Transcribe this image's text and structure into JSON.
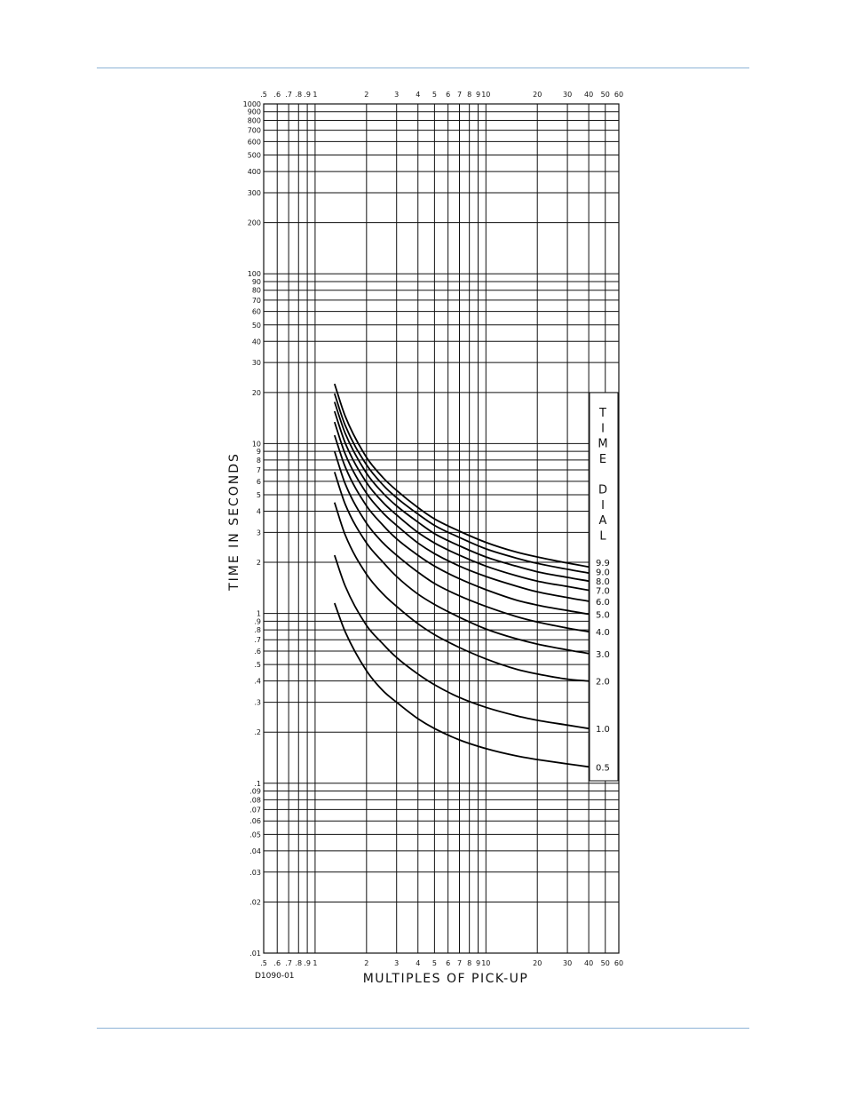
{
  "page": {
    "figure_code": "D1090-01"
  },
  "chart_data": {
    "type": "line",
    "title": "",
    "xlabel": "MULTIPLES OF PICK-UP",
    "ylabel": "TIME IN SECONDS",
    "xscale": "log",
    "yscale": "log",
    "xlim": [
      0.5,
      60
    ],
    "ylim": [
      0.01,
      1000
    ],
    "grid": true,
    "x_ticks": [
      0.5,
      0.6,
      0.7,
      0.8,
      0.9,
      1,
      2,
      3,
      4,
      5,
      6,
      7,
      8,
      9,
      10,
      20,
      30,
      40,
      50,
      60
    ],
    "x_tick_labels": [
      ".5",
      ".6",
      ".7",
      ".8",
      ".9",
      "1",
      "2",
      "3",
      "4",
      "5",
      "6",
      "7",
      "8",
      "9",
      "10",
      "20",
      "30",
      "40",
      "50",
      "60"
    ],
    "y_ticks": [
      0.01,
      0.02,
      0.03,
      0.04,
      0.05,
      0.06,
      0.07,
      0.08,
      0.09,
      0.1,
      0.2,
      0.3,
      0.4,
      0.5,
      0.6,
      0.7,
      0.8,
      0.9,
      1,
      2,
      3,
      4,
      5,
      6,
      7,
      8,
      9,
      10,
      20,
      30,
      40,
      50,
      60,
      70,
      80,
      90,
      100,
      200,
      300,
      400,
      500,
      600,
      700,
      800,
      900,
      1000
    ],
    "y_tick_labels": [
      ".01",
      ".02",
      ".03",
      ".04",
      ".05",
      ".06",
      ".07",
      ".08",
      ".09",
      ".1",
      ".2",
      ".3",
      ".4",
      ".5",
      ".6",
      ".7",
      ".8",
      ".9",
      "1",
      "2",
      "3",
      "4",
      "5",
      "6",
      "7",
      "8",
      "9",
      "10",
      "20",
      "30",
      "40",
      "50",
      "60",
      "70",
      "80",
      "90",
      "100",
      "200",
      "300",
      "400",
      "500",
      "600",
      "700",
      "800",
      "900",
      "1000"
    ],
    "legend_title": [
      "T",
      "I",
      "M",
      "E",
      "",
      "D",
      "I",
      "A",
      "L"
    ],
    "legend_placement": "right",
    "series": [
      {
        "name": "0.5",
        "x": [
          1.3,
          1.5,
          2,
          2.5,
          3,
          4,
          5,
          7,
          10,
          15,
          20,
          30,
          40
        ],
        "y": [
          1.15,
          0.78,
          0.46,
          0.35,
          0.3,
          0.24,
          0.21,
          0.18,
          0.16,
          0.145,
          0.138,
          0.13,
          0.125
        ]
      },
      {
        "name": "1.0",
        "x": [
          1.3,
          1.5,
          2,
          2.5,
          3,
          4,
          5,
          7,
          10,
          15,
          20,
          30,
          40
        ],
        "y": [
          2.2,
          1.45,
          0.85,
          0.66,
          0.55,
          0.44,
          0.38,
          0.32,
          0.28,
          0.25,
          0.235,
          0.22,
          0.21
        ]
      },
      {
        "name": "2.0",
        "x": [
          1.3,
          1.5,
          2,
          2.5,
          3,
          4,
          5,
          7,
          10,
          15,
          20,
          30,
          40
        ],
        "y": [
          4.5,
          2.9,
          1.7,
          1.3,
          1.1,
          0.87,
          0.75,
          0.63,
          0.54,
          0.47,
          0.44,
          0.41,
          0.4
        ]
      },
      {
        "name": "3.0",
        "x": [
          1.3,
          1.5,
          2,
          2.5,
          3,
          4,
          5,
          7,
          10,
          15,
          20,
          30,
          40
        ],
        "y": [
          6.8,
          4.4,
          2.6,
          2.0,
          1.65,
          1.3,
          1.13,
          0.95,
          0.81,
          0.71,
          0.66,
          0.61,
          0.58
        ]
      },
      {
        "name": "4.0",
        "x": [
          1.3,
          1.5,
          2,
          2.5,
          3,
          4,
          5,
          7,
          10,
          15,
          20,
          30,
          40
        ],
        "y": [
          9.0,
          5.8,
          3.4,
          2.6,
          2.2,
          1.75,
          1.5,
          1.27,
          1.1,
          0.96,
          0.89,
          0.82,
          0.78
        ]
      },
      {
        "name": "5.0",
        "x": [
          1.3,
          1.5,
          2,
          2.5,
          3,
          4,
          5,
          7,
          10,
          15,
          20,
          30,
          40
        ],
        "y": [
          11.2,
          7.3,
          4.3,
          3.3,
          2.75,
          2.2,
          1.9,
          1.6,
          1.38,
          1.2,
          1.12,
          1.04,
          0.99
        ]
      },
      {
        "name": "6.0",
        "x": [
          1.3,
          1.5,
          2,
          2.5,
          3,
          4,
          5,
          7,
          10,
          15,
          20,
          30,
          40
        ],
        "y": [
          13.4,
          8.7,
          5.1,
          3.9,
          3.3,
          2.6,
          2.25,
          1.9,
          1.65,
          1.45,
          1.34,
          1.24,
          1.18
        ]
      },
      {
        "name": "7.0",
        "x": [
          1.3,
          1.5,
          2,
          2.5,
          3,
          4,
          5,
          7,
          10,
          15,
          20,
          30,
          40
        ],
        "y": [
          15.5,
          10.1,
          5.9,
          4.5,
          3.8,
          3.0,
          2.6,
          2.2,
          1.9,
          1.67,
          1.55,
          1.44,
          1.37
        ]
      },
      {
        "name": "8.0",
        "x": [
          1.3,
          1.5,
          2,
          2.5,
          3,
          4,
          5,
          7,
          10,
          15,
          20,
          30,
          40
        ],
        "y": [
          17.6,
          11.5,
          6.7,
          5.1,
          4.3,
          3.45,
          2.95,
          2.5,
          2.15,
          1.9,
          1.76,
          1.63,
          1.55
        ]
      },
      {
        "name": "9.0",
        "x": [
          1.3,
          1.5,
          2,
          2.5,
          3,
          4,
          5,
          7,
          10,
          15,
          20,
          30,
          40
        ],
        "y": [
          19.7,
          12.8,
          7.5,
          5.7,
          4.8,
          3.85,
          3.3,
          2.8,
          2.4,
          2.12,
          1.97,
          1.82,
          1.73
        ]
      },
      {
        "name": "9.9",
        "x": [
          1.3,
          1.5,
          2,
          2.5,
          3,
          4,
          5,
          7,
          10,
          15,
          20,
          30,
          40
        ],
        "y": [
          22.5,
          14.5,
          8.3,
          6.3,
          5.3,
          4.2,
          3.6,
          3.05,
          2.62,
          2.3,
          2.15,
          1.98,
          1.88
        ]
      }
    ]
  }
}
